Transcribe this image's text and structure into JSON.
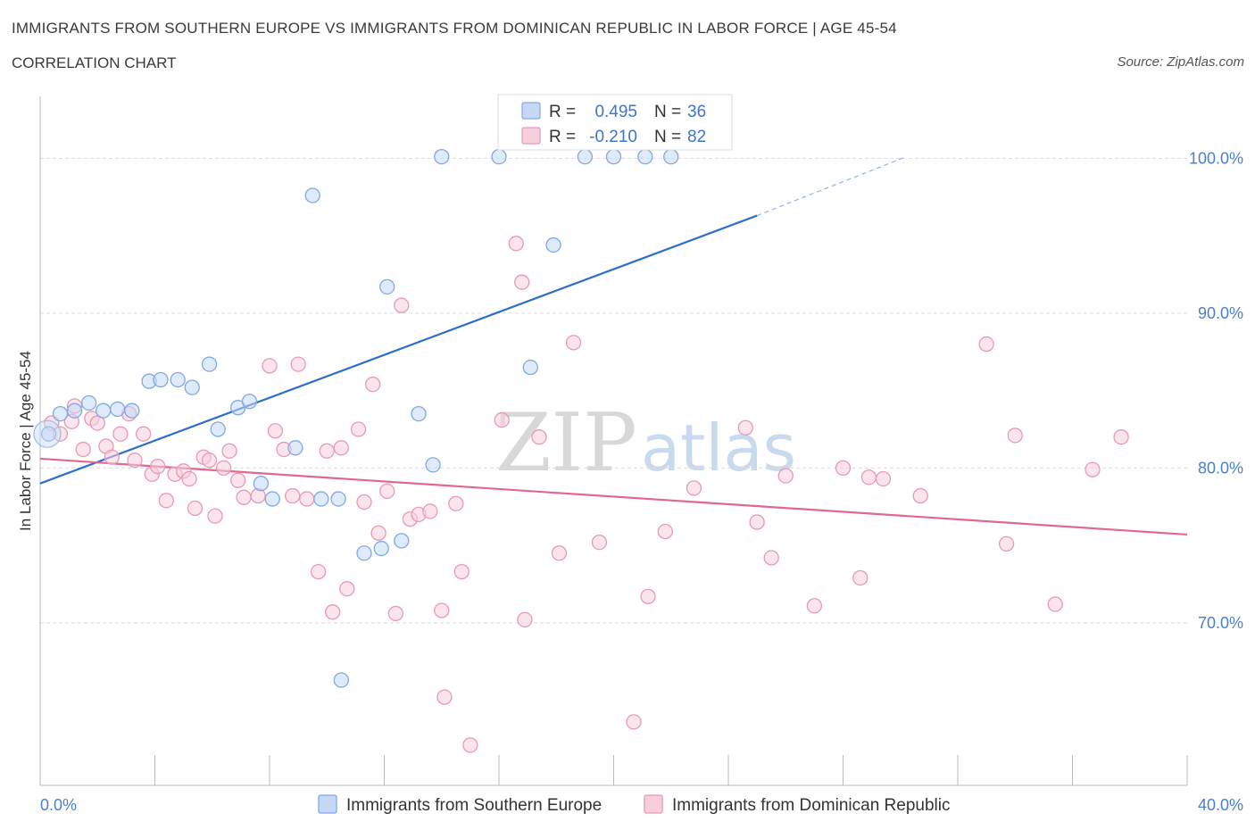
{
  "chart_data": {
    "type": "scatter",
    "title": "IMMIGRANTS FROM SOUTHERN EUROPE VS IMMIGRANTS FROM DOMINICAN REPUBLIC IN LABOR FORCE | AGE 45-54",
    "subtitle": "CORRELATION CHART",
    "source": "Source: ZipAtlas.com",
    "watermark": "ZIPatlas",
    "ylabel": "In Labor Force | Age 45-54",
    "xlim": [
      0,
      40
    ],
    "ylim": [
      59.5,
      104
    ],
    "x_tick_labels": [
      {
        "value": 0,
        "label": "0.0%"
      },
      {
        "value": 40,
        "label": "40.0%"
      }
    ],
    "y_tick_labels": [
      {
        "value": 70,
        "label": "70.0%"
      },
      {
        "value": 80,
        "label": "80.0%"
      },
      {
        "value": 90,
        "label": "90.0%"
      },
      {
        "value": 100,
        "label": "100.0%"
      }
    ],
    "stats": [
      {
        "r_label": "R =",
        "r_value": "0.495",
        "n_label": "N =",
        "n_value": "36"
      },
      {
        "r_label": "R =",
        "r_value": "-0.210",
        "n_label": "N =",
        "n_value": "82"
      }
    ],
    "series": [
      {
        "name": "Immigrants from Southern Europe",
        "color": "#7fa9e6",
        "fill": "#c5d9f5",
        "trend_color": "#2d6fcc",
        "trend": {
          "x0": 0,
          "y0": 79,
          "x1": 25,
          "y1": 96.3,
          "dash_x1": 30.2,
          "dash_y1": 100.1
        },
        "points": [
          [
            0.3,
            82.2
          ],
          [
            0.7,
            83.5
          ],
          [
            1.2,
            83.7
          ],
          [
            1.7,
            84.2
          ],
          [
            2.2,
            83.7
          ],
          [
            2.7,
            83.8
          ],
          [
            3.2,
            83.7
          ],
          [
            3.8,
            85.6
          ],
          [
            4.2,
            85.7
          ],
          [
            4.8,
            85.7
          ],
          [
            5.3,
            85.2
          ],
          [
            5.9,
            86.7
          ],
          [
            6.2,
            82.5
          ],
          [
            6.9,
            83.9
          ],
          [
            7.3,
            84.3
          ],
          [
            7.7,
            79.0
          ],
          [
            8.1,
            78.0
          ],
          [
            8.9,
            81.3
          ],
          [
            9.5,
            97.6
          ],
          [
            9.8,
            78.0
          ],
          [
            10.4,
            78.0
          ],
          [
            10.5,
            66.3
          ],
          [
            11.3,
            74.5
          ],
          [
            11.9,
            74.8
          ],
          [
            12.1,
            91.7
          ],
          [
            12.6,
            75.3
          ],
          [
            13.2,
            83.5
          ],
          [
            13.7,
            80.2
          ],
          [
            14.0,
            100.1
          ],
          [
            16.0,
            100.1
          ],
          [
            17.1,
            86.5
          ],
          [
            17.9,
            94.4
          ],
          [
            19.0,
            100.1
          ],
          [
            20.0,
            100.1
          ],
          [
            21.1,
            100.1
          ],
          [
            22.0,
            100.1
          ]
        ]
      },
      {
        "name": "Immigrants from Dominican Republic",
        "color": "#e899b4",
        "fill": "#f7cfdc",
        "trend_color": "#e0688f",
        "trend": {
          "x0": 0,
          "y0": 80.6,
          "x1": 40,
          "y1": 75.7
        },
        "points": [
          [
            0.4,
            82.9
          ],
          [
            0.7,
            82.2
          ],
          [
            1.1,
            83.0
          ],
          [
            1.2,
            84.0
          ],
          [
            1.5,
            81.2
          ],
          [
            1.8,
            83.2
          ],
          [
            2.0,
            82.9
          ],
          [
            2.3,
            81.4
          ],
          [
            2.5,
            80.7
          ],
          [
            2.8,
            82.2
          ],
          [
            3.1,
            83.5
          ],
          [
            3.3,
            80.5
          ],
          [
            3.6,
            82.2
          ],
          [
            3.9,
            79.6
          ],
          [
            4.1,
            80.1
          ],
          [
            4.4,
            77.9
          ],
          [
            4.7,
            79.6
          ],
          [
            5.0,
            79.8
          ],
          [
            5.2,
            79.3
          ],
          [
            5.4,
            77.4
          ],
          [
            5.7,
            80.7
          ],
          [
            5.9,
            80.5
          ],
          [
            6.1,
            76.9
          ],
          [
            6.4,
            80.0
          ],
          [
            6.6,
            81.1
          ],
          [
            6.9,
            79.2
          ],
          [
            7.1,
            78.1
          ],
          [
            7.6,
            78.2
          ],
          [
            8.0,
            86.6
          ],
          [
            8.2,
            82.4
          ],
          [
            8.5,
            81.2
          ],
          [
            8.8,
            78.2
          ],
          [
            9.0,
            86.7
          ],
          [
            9.3,
            78.0
          ],
          [
            9.7,
            73.3
          ],
          [
            10.0,
            81.1
          ],
          [
            10.2,
            70.7
          ],
          [
            10.5,
            81.3
          ],
          [
            10.7,
            72.2
          ],
          [
            11.1,
            82.5
          ],
          [
            11.3,
            77.8
          ],
          [
            11.6,
            85.4
          ],
          [
            11.8,
            75.8
          ],
          [
            12.1,
            78.5
          ],
          [
            12.4,
            70.6
          ],
          [
            12.6,
            90.5
          ],
          [
            12.9,
            76.7
          ],
          [
            13.2,
            77.0
          ],
          [
            13.6,
            77.2
          ],
          [
            14.0,
            70.8
          ],
          [
            14.1,
            65.2
          ],
          [
            14.5,
            77.7
          ],
          [
            14.7,
            73.3
          ],
          [
            15.0,
            62.1
          ],
          [
            16.1,
            83.1
          ],
          [
            16.6,
            94.5
          ],
          [
            16.8,
            92.0
          ],
          [
            16.9,
            70.2
          ],
          [
            17.4,
            82.0
          ],
          [
            18.1,
            74.5
          ],
          [
            18.6,
            88.1
          ],
          [
            19.5,
            75.2
          ],
          [
            20.7,
            63.6
          ],
          [
            21.2,
            71.7
          ],
          [
            21.8,
            75.9
          ],
          [
            22.8,
            78.7
          ],
          [
            24.6,
            82.6
          ],
          [
            25.0,
            76.5
          ],
          [
            25.5,
            74.2
          ],
          [
            26.0,
            79.5
          ],
          [
            27.0,
            71.1
          ],
          [
            28.0,
            80.0
          ],
          [
            28.6,
            72.9
          ],
          [
            28.9,
            79.4
          ],
          [
            29.4,
            79.3
          ],
          [
            30.7,
            78.2
          ],
          [
            33.0,
            88.0
          ],
          [
            33.7,
            75.1
          ],
          [
            34.0,
            82.1
          ],
          [
            35.4,
            71.2
          ],
          [
            36.7,
            79.9
          ],
          [
            37.7,
            82.0
          ]
        ]
      }
    ]
  }
}
